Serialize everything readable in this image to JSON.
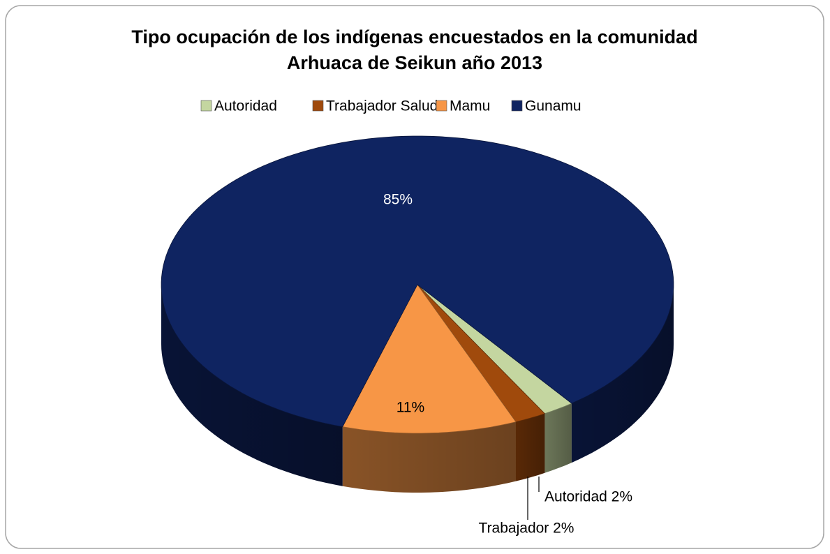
{
  "chart_data": {
    "type": "pie",
    "title": [
      "Tipo ocupación de los indígenas  encuestados en la comunidad",
      "Arhuaca de Seikun año 2013"
    ],
    "categories": [
      "Autoridad",
      "Trabajador Salud",
      "Mamu",
      "Gunamu"
    ],
    "values": [
      2,
      2,
      11,
      85
    ],
    "value_labels": [
      "Autoridad 2%",
      "Trabajador  2%",
      "11%",
      "85%"
    ],
    "colors": [
      "#c4d6a0",
      "#a04a0c",
      "#f79646",
      "#0f2461"
    ],
    "legend": "top"
  }
}
